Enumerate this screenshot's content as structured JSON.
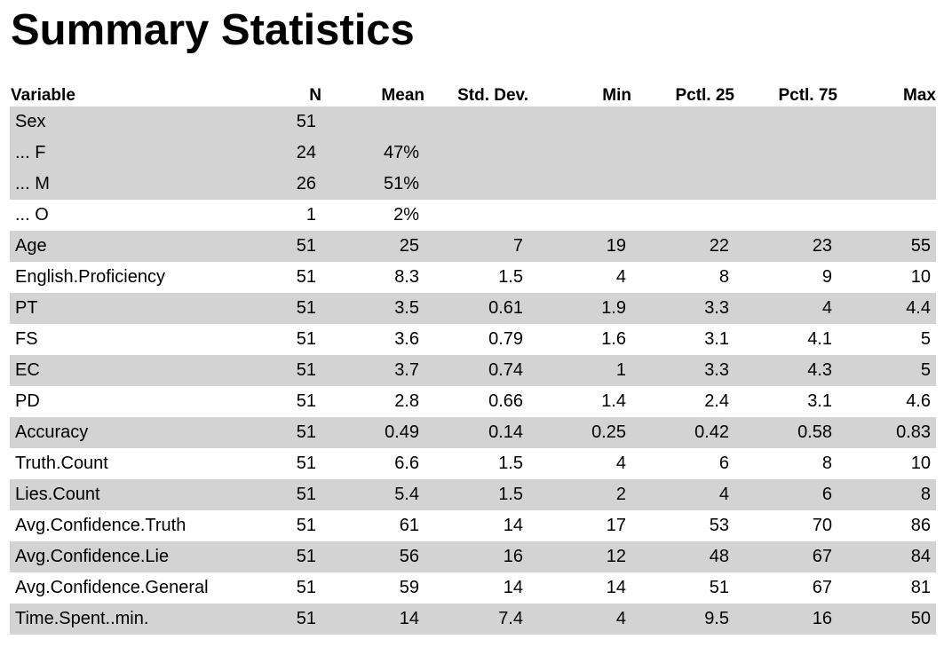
{
  "title": "Summary Statistics",
  "columns": [
    "Variable",
    "N",
    "Mean",
    "Std. Dev.",
    "Min",
    "Pctl. 25",
    "Pctl. 75",
    "Max"
  ],
  "rows": [
    {
      "cells": [
        "Sex",
        "51",
        "",
        "",
        "",
        "",
        "",
        ""
      ],
      "shaded": true
    },
    {
      "cells": [
        "... F",
        "24",
        "47%",
        "",
        "",
        "",
        "",
        ""
      ],
      "shaded": true
    },
    {
      "cells": [
        "... M",
        "26",
        "51%",
        "",
        "",
        "",
        "",
        ""
      ],
      "shaded": true
    },
    {
      "cells": [
        "... O",
        "1",
        "2%",
        "",
        "",
        "",
        "",
        ""
      ],
      "shaded": false
    },
    {
      "cells": [
        "Age",
        "51",
        "25",
        "7",
        "19",
        "22",
        "23",
        "55"
      ],
      "shaded": true
    },
    {
      "cells": [
        "English.Proficiency",
        "51",
        "8.3",
        "1.5",
        "4",
        "8",
        "9",
        "10"
      ],
      "shaded": false
    },
    {
      "cells": [
        "PT",
        "51",
        "3.5",
        "0.61",
        "1.9",
        "3.3",
        "4",
        "4.4"
      ],
      "shaded": true
    },
    {
      "cells": [
        "FS",
        "51",
        "3.6",
        "0.79",
        "1.6",
        "3.1",
        "4.1",
        "5"
      ],
      "shaded": false
    },
    {
      "cells": [
        "EC",
        "51",
        "3.7",
        "0.74",
        "1",
        "3.3",
        "4.3",
        "5"
      ],
      "shaded": true
    },
    {
      "cells": [
        "PD",
        "51",
        "2.8",
        "0.66",
        "1.4",
        "2.4",
        "3.1",
        "4.6"
      ],
      "shaded": false
    },
    {
      "cells": [
        "Accuracy",
        "51",
        "0.49",
        "0.14",
        "0.25",
        "0.42",
        "0.58",
        "0.83"
      ],
      "shaded": true
    },
    {
      "cells": [
        "Truth.Count",
        "51",
        "6.6",
        "1.5",
        "4",
        "6",
        "8",
        "10"
      ],
      "shaded": false
    },
    {
      "cells": [
        "Lies.Count",
        "51",
        "5.4",
        "1.5",
        "2",
        "4",
        "6",
        "8"
      ],
      "shaded": true
    },
    {
      "cells": [
        "Avg.Confidence.Truth",
        "51",
        "61",
        "14",
        "17",
        "53",
        "70",
        "86"
      ],
      "shaded": false
    },
    {
      "cells": [
        "Avg.Confidence.Lie",
        "51",
        "56",
        "16",
        "12",
        "48",
        "67",
        "84"
      ],
      "shaded": true
    },
    {
      "cells": [
        "Avg.Confidence.General",
        "51",
        "59",
        "14",
        "14",
        "51",
        "67",
        "81"
      ],
      "shaded": false
    },
    {
      "cells": [
        "Time.Spent..min.",
        "51",
        "14",
        "7.4",
        "4",
        "9.5",
        "16",
        "50"
      ],
      "shaded": true
    }
  ],
  "colors": {
    "shaded_row": "#d3d3d3",
    "text": "#000000",
    "background": "#ffffff"
  }
}
